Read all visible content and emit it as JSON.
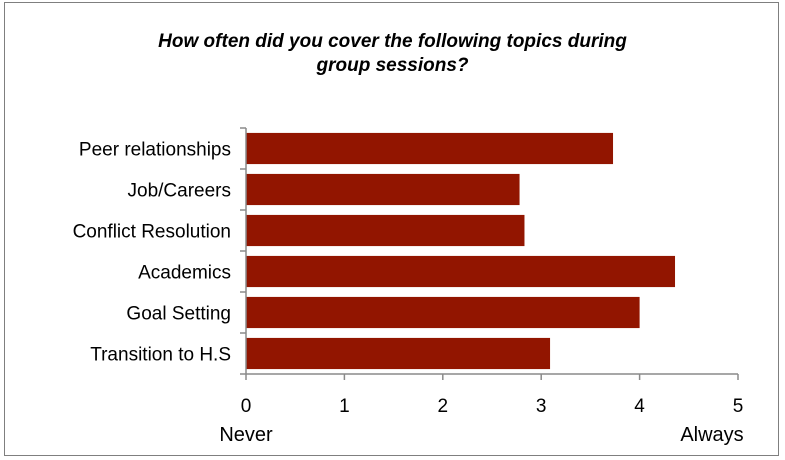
{
  "chart_data": {
    "type": "bar",
    "orientation": "horizontal",
    "title_lines": [
      "How often did you cover the following topics during",
      "group sessions?"
    ],
    "categories": [
      "Peer relationships",
      "Job/Careers",
      "Conflict Resolution",
      "Academics",
      "Goal Setting",
      "Transition to H.S"
    ],
    "values": [
      3.73,
      2.78,
      2.83,
      4.36,
      4.0,
      3.09
    ],
    "xlim": [
      0,
      5
    ],
    "xticks": [
      "0",
      "1",
      "2",
      "3",
      "4",
      "5"
    ],
    "x_end_labels": {
      "left": "Never",
      "right": "Always"
    },
    "bar_color": "#921500",
    "grid": false
  }
}
